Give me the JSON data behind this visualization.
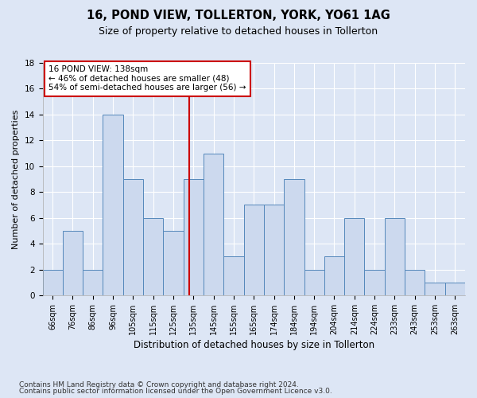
{
  "title": "16, POND VIEW, TOLLERTON, YORK, YO61 1AG",
  "subtitle": "Size of property relative to detached houses in Tollerton",
  "xlabel": "Distribution of detached houses by size in Tollerton",
  "ylabel": "Number of detached properties",
  "bar_labels": [
    "66sqm",
    "76sqm",
    "86sqm",
    "96sqm",
    "105sqm",
    "115sqm",
    "125sqm",
    "135sqm",
    "145sqm",
    "155sqm",
    "165sqm",
    "174sqm",
    "184sqm",
    "194sqm",
    "204sqm",
    "214sqm",
    "224sqm",
    "233sqm",
    "243sqm",
    "253sqm",
    "263sqm"
  ],
  "bar_values": [
    2,
    5,
    2,
    14,
    9,
    6,
    5,
    9,
    11,
    3,
    7,
    7,
    9,
    2,
    3,
    6,
    2,
    6,
    2,
    1,
    1
  ],
  "bar_color": "#ccd9ee",
  "bar_edgecolor": "#5588bb",
  "vline_color": "#cc0000",
  "annotation_text": "16 POND VIEW: 138sqm\n← 46% of detached houses are smaller (48)\n54% of semi-detached houses are larger (56) →",
  "annotation_box_color": "#ffffff",
  "annotation_box_edgecolor": "#cc0000",
  "ylim": [
    0,
    18
  ],
  "yticks": [
    0,
    2,
    4,
    6,
    8,
    10,
    12,
    14,
    16,
    18
  ],
  "background_color": "#dde6f5",
  "plot_background": "#dde6f5",
  "footer_line1": "Contains HM Land Registry data © Crown copyright and database right 2024.",
  "footer_line2": "Contains public sector information licensed under the Open Government Licence v3.0.",
  "title_fontsize": 10.5,
  "subtitle_fontsize": 9,
  "xlabel_fontsize": 8.5,
  "ylabel_fontsize": 8,
  "tick_fontsize": 7,
  "footer_fontsize": 6.5,
  "annotation_fontsize": 7.5
}
